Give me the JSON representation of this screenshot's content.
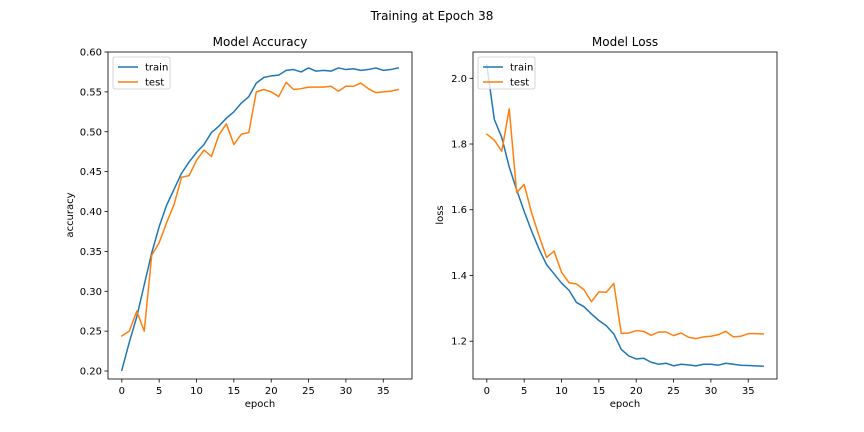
{
  "figure": {
    "suptitle": "Training at Epoch 38"
  },
  "colors": {
    "train": "#1f77b4",
    "test": "#ff7f0e"
  },
  "chart_data": [
    {
      "type": "line",
      "title": "Model Accuracy",
      "xlabel": "epoch",
      "ylabel": "accuracy",
      "xlim": [
        -1.85,
        38.85
      ],
      "ylim": [
        0.19,
        0.6
      ],
      "xticks": [
        0,
        5,
        10,
        15,
        20,
        25,
        30,
        35
      ],
      "yticks": [
        0.2,
        0.25,
        0.3,
        0.35,
        0.4,
        0.45,
        0.5,
        0.55,
        0.6
      ],
      "ytick_decimals": 2,
      "legend": "upper left",
      "x": [
        0,
        1,
        2,
        3,
        4,
        5,
        6,
        7,
        8,
        9,
        10,
        11,
        12,
        13,
        14,
        15,
        16,
        17,
        18,
        19,
        20,
        21,
        22,
        23,
        24,
        25,
        26,
        27,
        28,
        29,
        30,
        31,
        32,
        33,
        34,
        35,
        36,
        37
      ],
      "series": [
        {
          "name": "train",
          "color_key": "train",
          "values": [
            0.201,
            0.236,
            0.268,
            0.308,
            0.348,
            0.381,
            0.408,
            0.428,
            0.448,
            0.462,
            0.474,
            0.484,
            0.499,
            0.507,
            0.517,
            0.525,
            0.536,
            0.544,
            0.561,
            0.568,
            0.57,
            0.571,
            0.577,
            0.578,
            0.575,
            0.58,
            0.576,
            0.577,
            0.576,
            0.58,
            0.578,
            0.579,
            0.577,
            0.578,
            0.58,
            0.577,
            0.578,
            0.58
          ]
        },
        {
          "name": "test",
          "color_key": "test",
          "values": [
            0.244,
            0.25,
            0.275,
            0.25,
            0.345,
            0.361,
            0.386,
            0.409,
            0.443,
            0.445,
            0.464,
            0.477,
            0.469,
            0.496,
            0.51,
            0.484,
            0.497,
            0.499,
            0.55,
            0.553,
            0.55,
            0.544,
            0.562,
            0.553,
            0.554,
            0.556,
            0.556,
            0.556,
            0.557,
            0.551,
            0.557,
            0.557,
            0.561,
            0.554,
            0.549,
            0.55,
            0.551,
            0.553
          ]
        }
      ]
    },
    {
      "type": "line",
      "title": "Model Loss",
      "xlabel": "epoch",
      "ylabel": "loss",
      "xlim": [
        -1.85,
        38.85
      ],
      "ylim": [
        1.085,
        2.08
      ],
      "xticks": [
        0,
        5,
        10,
        15,
        20,
        25,
        30,
        35
      ],
      "yticks": [
        1.2,
        1.4,
        1.6,
        1.8,
        2.0
      ],
      "ytick_decimals": 1,
      "legend": "upper left",
      "x": [
        0,
        1,
        2,
        3,
        4,
        5,
        6,
        7,
        8,
        9,
        10,
        11,
        12,
        13,
        14,
        15,
        16,
        17,
        18,
        19,
        20,
        21,
        22,
        23,
        24,
        25,
        26,
        27,
        28,
        29,
        30,
        31,
        32,
        33,
        34,
        35,
        36,
        37
      ],
      "series": [
        {
          "name": "train",
          "color_key": "train",
          "values": [
            2.04,
            1.875,
            1.82,
            1.73,
            1.66,
            1.595,
            1.535,
            1.48,
            1.433,
            1.405,
            1.377,
            1.355,
            1.318,
            1.305,
            1.283,
            1.263,
            1.247,
            1.222,
            1.175,
            1.155,
            1.146,
            1.148,
            1.136,
            1.13,
            1.133,
            1.125,
            1.13,
            1.128,
            1.125,
            1.13,
            1.13,
            1.127,
            1.133,
            1.13,
            1.127,
            1.126,
            1.125,
            1.124
          ]
        },
        {
          "name": "test",
          "color_key": "test",
          "values": [
            1.83,
            1.812,
            1.778,
            1.907,
            1.652,
            1.677,
            1.59,
            1.52,
            1.455,
            1.474,
            1.41,
            1.378,
            1.374,
            1.357,
            1.32,
            1.35,
            1.349,
            1.376,
            1.224,
            1.225,
            1.232,
            1.23,
            1.218,
            1.228,
            1.228,
            1.217,
            1.225,
            1.212,
            1.208,
            1.213,
            1.215,
            1.22,
            1.23,
            1.213,
            1.215,
            1.223,
            1.223,
            1.222
          ]
        }
      ]
    }
  ]
}
